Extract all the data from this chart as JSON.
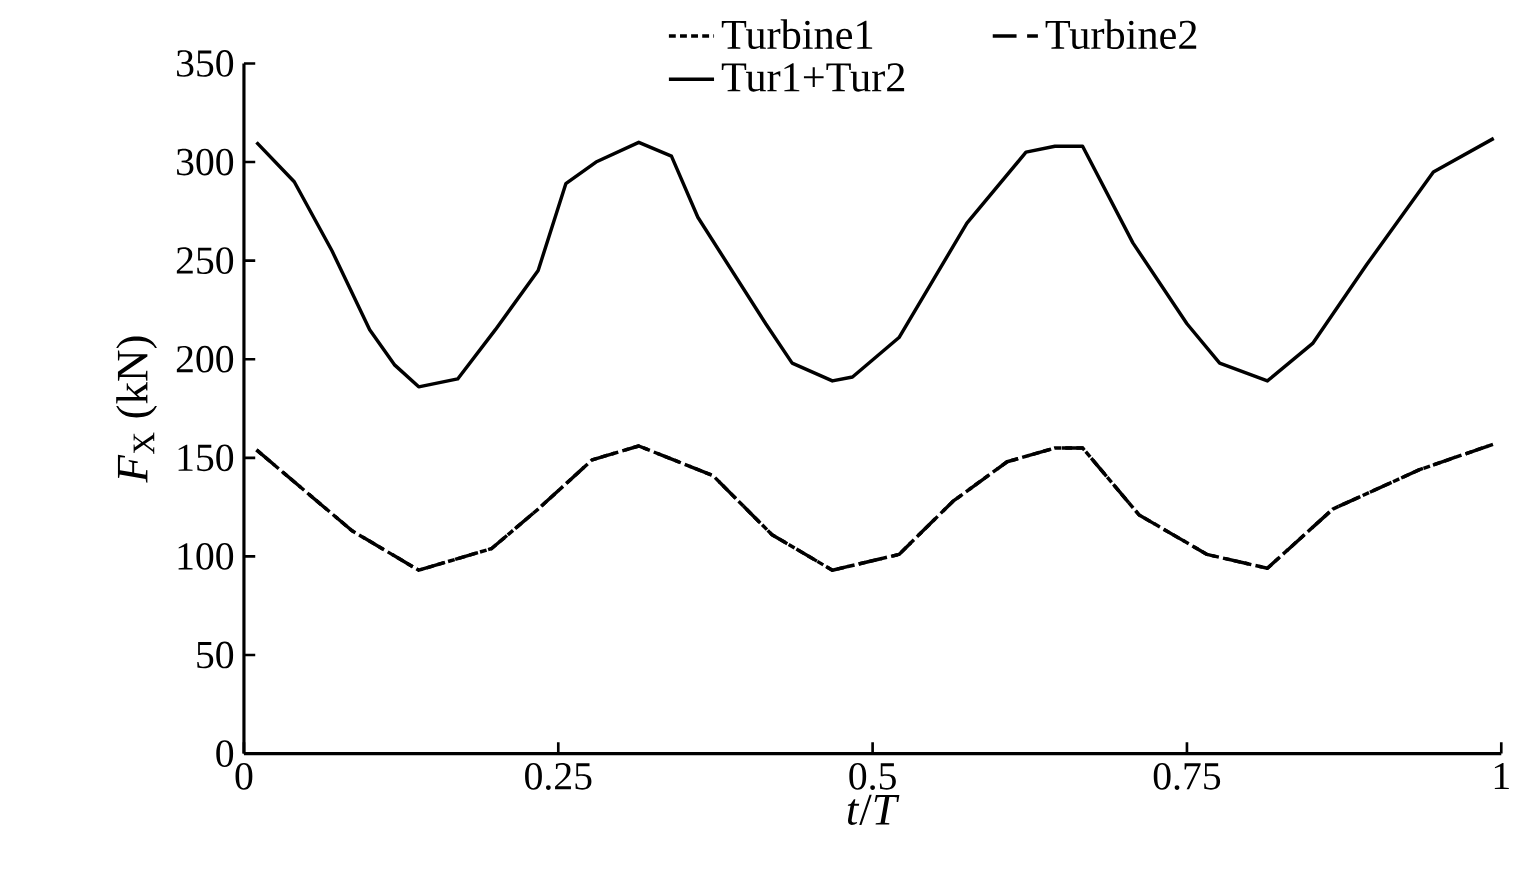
{
  "chart_data": {
    "type": "line",
    "xlabel": "*t*/*T*",
    "ylabel": "*F*$_{X}$ (kN)",
    "xlim": [
      0,
      1
    ],
    "xticks": [
      0,
      0.25,
      0.5,
      0.75,
      1
    ],
    "ylim": [
      0,
      350
    ],
    "yticks": [
      0,
      50,
      100,
      150,
      200,
      250,
      300,
      350
    ],
    "grid": false,
    "legend": "top",
    "marker": "none",
    "series": [
      {
        "name": "Turbine1",
        "color": "#000000",
        "line_style": "dotted",
        "x": [
          0.01,
          0.086,
          0.139,
          0.197,
          0.234,
          0.277,
          0.314,
          0.373,
          0.42,
          0.468,
          0.521,
          0.564,
          0.607,
          0.645,
          0.667,
          0.712,
          0.766,
          0.814,
          0.866,
          0.935,
          0.994
        ],
        "values": [
          154,
          113,
          93,
          104,
          124,
          149,
          156,
          141,
          111,
          93,
          101,
          128,
          148,
          155,
          155,
          121,
          101,
          94,
          124,
          144,
          157
        ]
      },
      {
        "name": "Turbine2",
        "color": "#000000",
        "line_style": "dashed",
        "x": [
          0.01,
          0.086,
          0.139,
          0.197,
          0.234,
          0.277,
          0.314,
          0.373,
          0.42,
          0.468,
          0.521,
          0.564,
          0.607,
          0.645,
          0.667,
          0.712,
          0.766,
          0.814,
          0.866,
          0.935,
          0.994
        ],
        "values": [
          154,
          113,
          93,
          104,
          124,
          149,
          156,
          141,
          111,
          93,
          101,
          128,
          148,
          155,
          155,
          121,
          101,
          94,
          124,
          144,
          157
        ]
      },
      {
        "name": "Tur1+Tur2",
        "color": "#000000",
        "line_style": "solid",
        "x": [
          0.01,
          0.04,
          0.07,
          0.1,
          0.12,
          0.139,
          0.17,
          0.2,
          0.234,
          0.256,
          0.28,
          0.314,
          0.34,
          0.361,
          0.415,
          0.436,
          0.468,
          0.484,
          0.521,
          0.575,
          0.622,
          0.645,
          0.667,
          0.707,
          0.75,
          0.776,
          0.814,
          0.85,
          0.893,
          0.946,
          0.994
        ],
        "values": [
          310,
          290,
          255,
          215,
          197,
          186,
          190,
          215,
          245,
          289,
          300,
          310,
          303,
          272,
          218,
          198,
          189,
          191,
          211,
          269,
          305,
          308,
          308,
          259,
          218,
          198,
          189,
          208,
          248,
          295,
          312
        ]
      }
    ]
  }
}
